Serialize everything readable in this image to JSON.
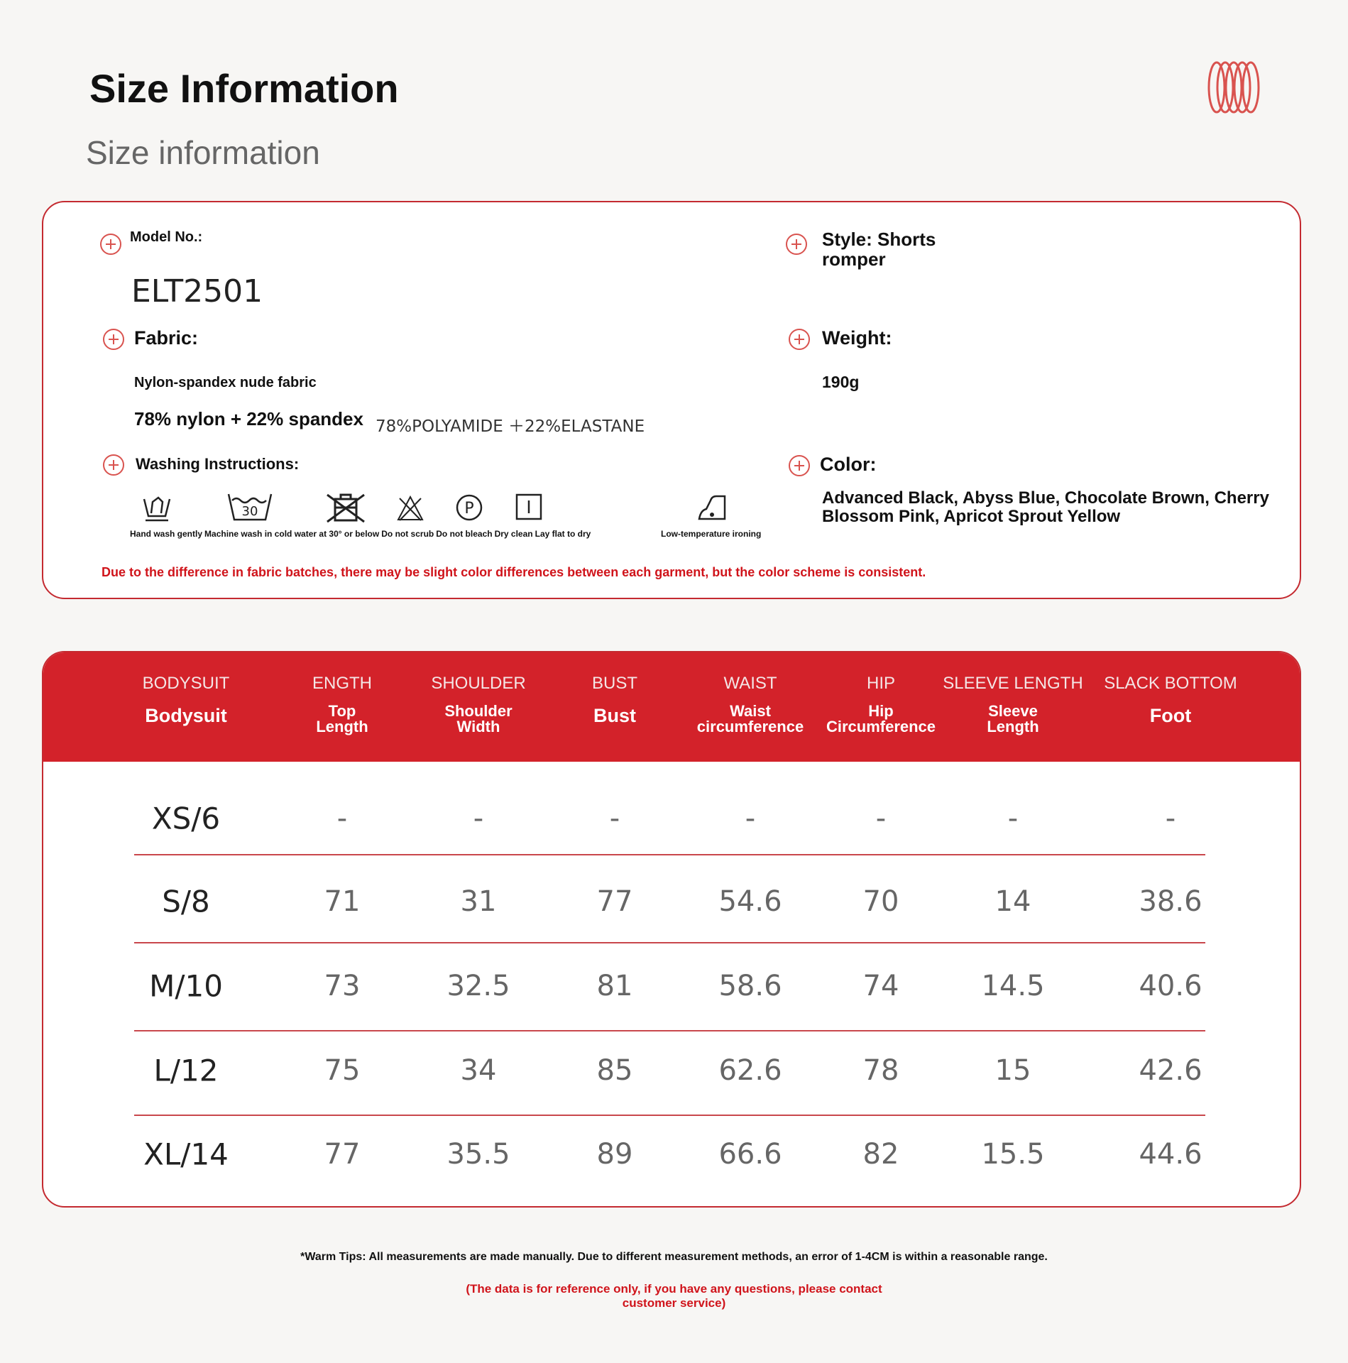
{
  "header": {
    "title": "Size Information",
    "subtitle": "Size information",
    "logo_icon": "rings-logo-icon"
  },
  "info": {
    "model_label": "Model No.:",
    "model_value": "ELT2501",
    "fabric_label": "Fabric:",
    "fabric_desc": "Nylon-spandex nude fabric",
    "fabric_comp": "78% nylon + 22% spandex",
    "fabric_comp_en": "78%POLYAMIDE ＋22%ELASTANE",
    "washing_label": "Washing Instructions:",
    "washing": [
      {
        "icon": "hand-wash-icon",
        "label": "Hand wash gently"
      },
      {
        "icon": "machine-wash-30-icon",
        "label": "Machine wash in cold water at 30° or below",
        "temp": "30"
      },
      {
        "icon": "do-not-scrub-icon",
        "label": "Do not scrub"
      },
      {
        "icon": "do-not-bleach-icon",
        "label": "Do not bleach"
      },
      {
        "icon": "dry-clean-icon",
        "label": "Dry clean"
      },
      {
        "icon": "lay-flat-dry-icon",
        "label": "Lay flat to dry"
      },
      {
        "icon": "low-temp-iron-icon",
        "label": "Low-temperature ironing"
      }
    ],
    "style_label": "Style: Shorts",
    "style_label2": "romper",
    "weight_label": "Weight:",
    "weight_value": "190g",
    "color_label": "Color:",
    "color_line1": "Advanced Black, Abyss Blue, Chocolate Brown, Cherry",
    "color_line2": "Blossom Pink, Apricot Sprout Yellow",
    "note": "Due to the difference in fabric batches, there may be slight color differences between each garment, but the color scheme is consistent."
  },
  "table": {
    "columns": [
      {
        "en": "BODYSUIT",
        "cn1": "Bodysuit",
        "cn2": ""
      },
      {
        "en": "ENGTH",
        "cn1": "Top",
        "cn2": "Length"
      },
      {
        "en": "SHOULDER",
        "cn1": "Shoulder",
        "cn2": "Width"
      },
      {
        "en": "BUST",
        "cn1": "Bust",
        "cn2": ""
      },
      {
        "en": "WAIST",
        "cn1": "Waist",
        "cn2": "circumference"
      },
      {
        "en": "HIP",
        "cn1": "Hip",
        "cn2": "Circumference"
      },
      {
        "en": "SLEEVE LENGTH",
        "cn1": "Sleeve",
        "cn2": "Length"
      },
      {
        "en": "SLACK BOTTOM",
        "cn1": "Foot",
        "cn2": ""
      }
    ],
    "rows": [
      [
        "XS/6",
        "-",
        "-",
        "-",
        "-",
        "-",
        "-",
        "-"
      ],
      [
        "S/8",
        "71",
        "31",
        "77",
        "54.6",
        "70",
        "14",
        "38.6"
      ],
      [
        "M/10",
        "73",
        "32.5",
        "81",
        "58.6",
        "74",
        "14.5",
        "40.6"
      ],
      [
        "L/12",
        "75",
        "34",
        "85",
        "62.6",
        "78",
        "15",
        "42.6"
      ],
      [
        "XL/14",
        "77",
        "35.5",
        "89",
        "66.6",
        "82",
        "15.5",
        "44.6"
      ]
    ]
  },
  "footer": {
    "tip": "*Warm Tips: All measurements are made manually. Due to different measurement methods, an error of 1-4CM is within a reasonable range.",
    "reference": "(The data is for reference only, if you have any questions, please contact customer service)"
  },
  "colors": {
    "accent": "#d3222a",
    "border": "#c42a30",
    "note": "#d0141b"
  }
}
